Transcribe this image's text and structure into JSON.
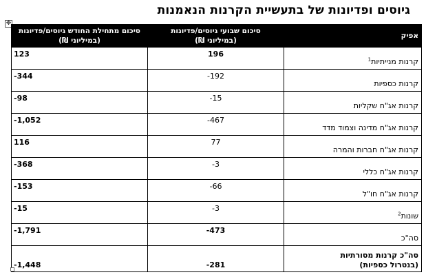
{
  "title": "גיוסים ופדיונות של בתעשיית הקרנות הנאמנות",
  "table": {
    "headers": {
      "sector": "אפיק",
      "weekly_line1": "סיכום שבועי גיוסים/פדיונות",
      "weekly_line2": "(במיליוני ₪)",
      "mtd_line1": "סיכום מתחילת החודש גיוסים/פדיונות",
      "mtd_line2": "(במיליוני ₪)"
    },
    "rows": [
      {
        "sector": "קרנות מנייתיות",
        "note": "1",
        "weekly": "196",
        "mtd": "123"
      },
      {
        "sector": "קרנות כספיות",
        "note": "",
        "weekly": "-192",
        "mtd": "-344"
      },
      {
        "sector": "קרנות אג\"ח שקליות",
        "note": "",
        "weekly": "-15",
        "mtd": "-98"
      },
      {
        "sector": "קרנות אג\"ח מדינה וצמוד מדד",
        "note": "",
        "weekly": "-467",
        "mtd": "-1,052"
      },
      {
        "sector": "קרנות אג\"ח חברות והמרה",
        "note": "",
        "weekly": "77",
        "mtd": "116"
      },
      {
        "sector": "קרנות אג\"ח כללי",
        "note": "",
        "weekly": "-3",
        "mtd": "-368"
      },
      {
        "sector": "קרנות אג\"ח חו\"ל",
        "note": "",
        "weekly": "-66",
        "mtd": "-153"
      },
      {
        "sector": "שונות",
        "note": "2",
        "weekly": "-3",
        "mtd": "-15"
      },
      {
        "sector": "סה\"כ",
        "note": "",
        "weekly": "-473",
        "mtd": "-1,791"
      },
      {
        "sector_line1": "סה\"כ קרנות מסורתיות",
        "sector_line2": "(בנטרול כספיות)",
        "weekly": "-281",
        "mtd": "-1,448"
      }
    ]
  },
  "icons": {
    "move_handle": "move-cross-icon",
    "resize_handle": "resize-square-icon"
  }
}
